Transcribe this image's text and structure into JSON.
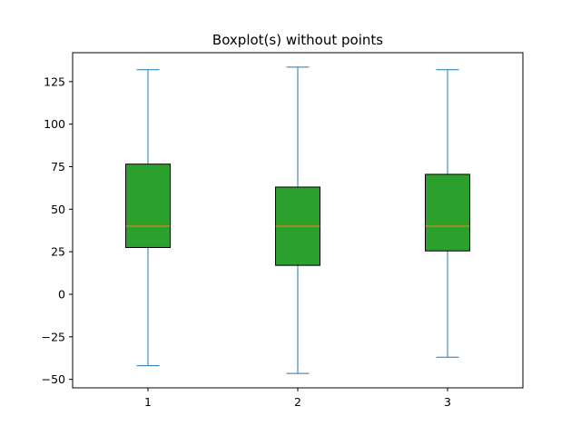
{
  "chart_data": {
    "type": "box",
    "title": "Boxplot(s) without points",
    "xlabel": "",
    "ylabel": "",
    "categories": [
      "1",
      "2",
      "3"
    ],
    "boxes": [
      {
        "category": "1",
        "whisker_low": -42,
        "q1": 27.5,
        "median": 40,
        "q3": 76.5,
        "whisker_high": 132
      },
      {
        "category": "2",
        "whisker_low": -46.5,
        "q1": 17,
        "median": 40,
        "q3": 63,
        "whisker_high": 133.5
      },
      {
        "category": "3",
        "whisker_low": -37,
        "q1": 25.5,
        "median": 40,
        "q3": 70.5,
        "whisker_high": 132
      }
    ],
    "ylim": [
      -55,
      142
    ],
    "yticks": [
      -50,
      -25,
      0,
      25,
      50,
      75,
      100,
      125
    ],
    "ytick_labels": [
      "−50",
      "−25",
      "0",
      "25",
      "50",
      "75",
      "100",
      "125"
    ],
    "show_outliers": false,
    "grid": false,
    "colors": {
      "box_fill": "#2ca02c",
      "box_edge": "#000000",
      "whisker": "#1f77b4",
      "median": "#ff7f0e"
    }
  }
}
